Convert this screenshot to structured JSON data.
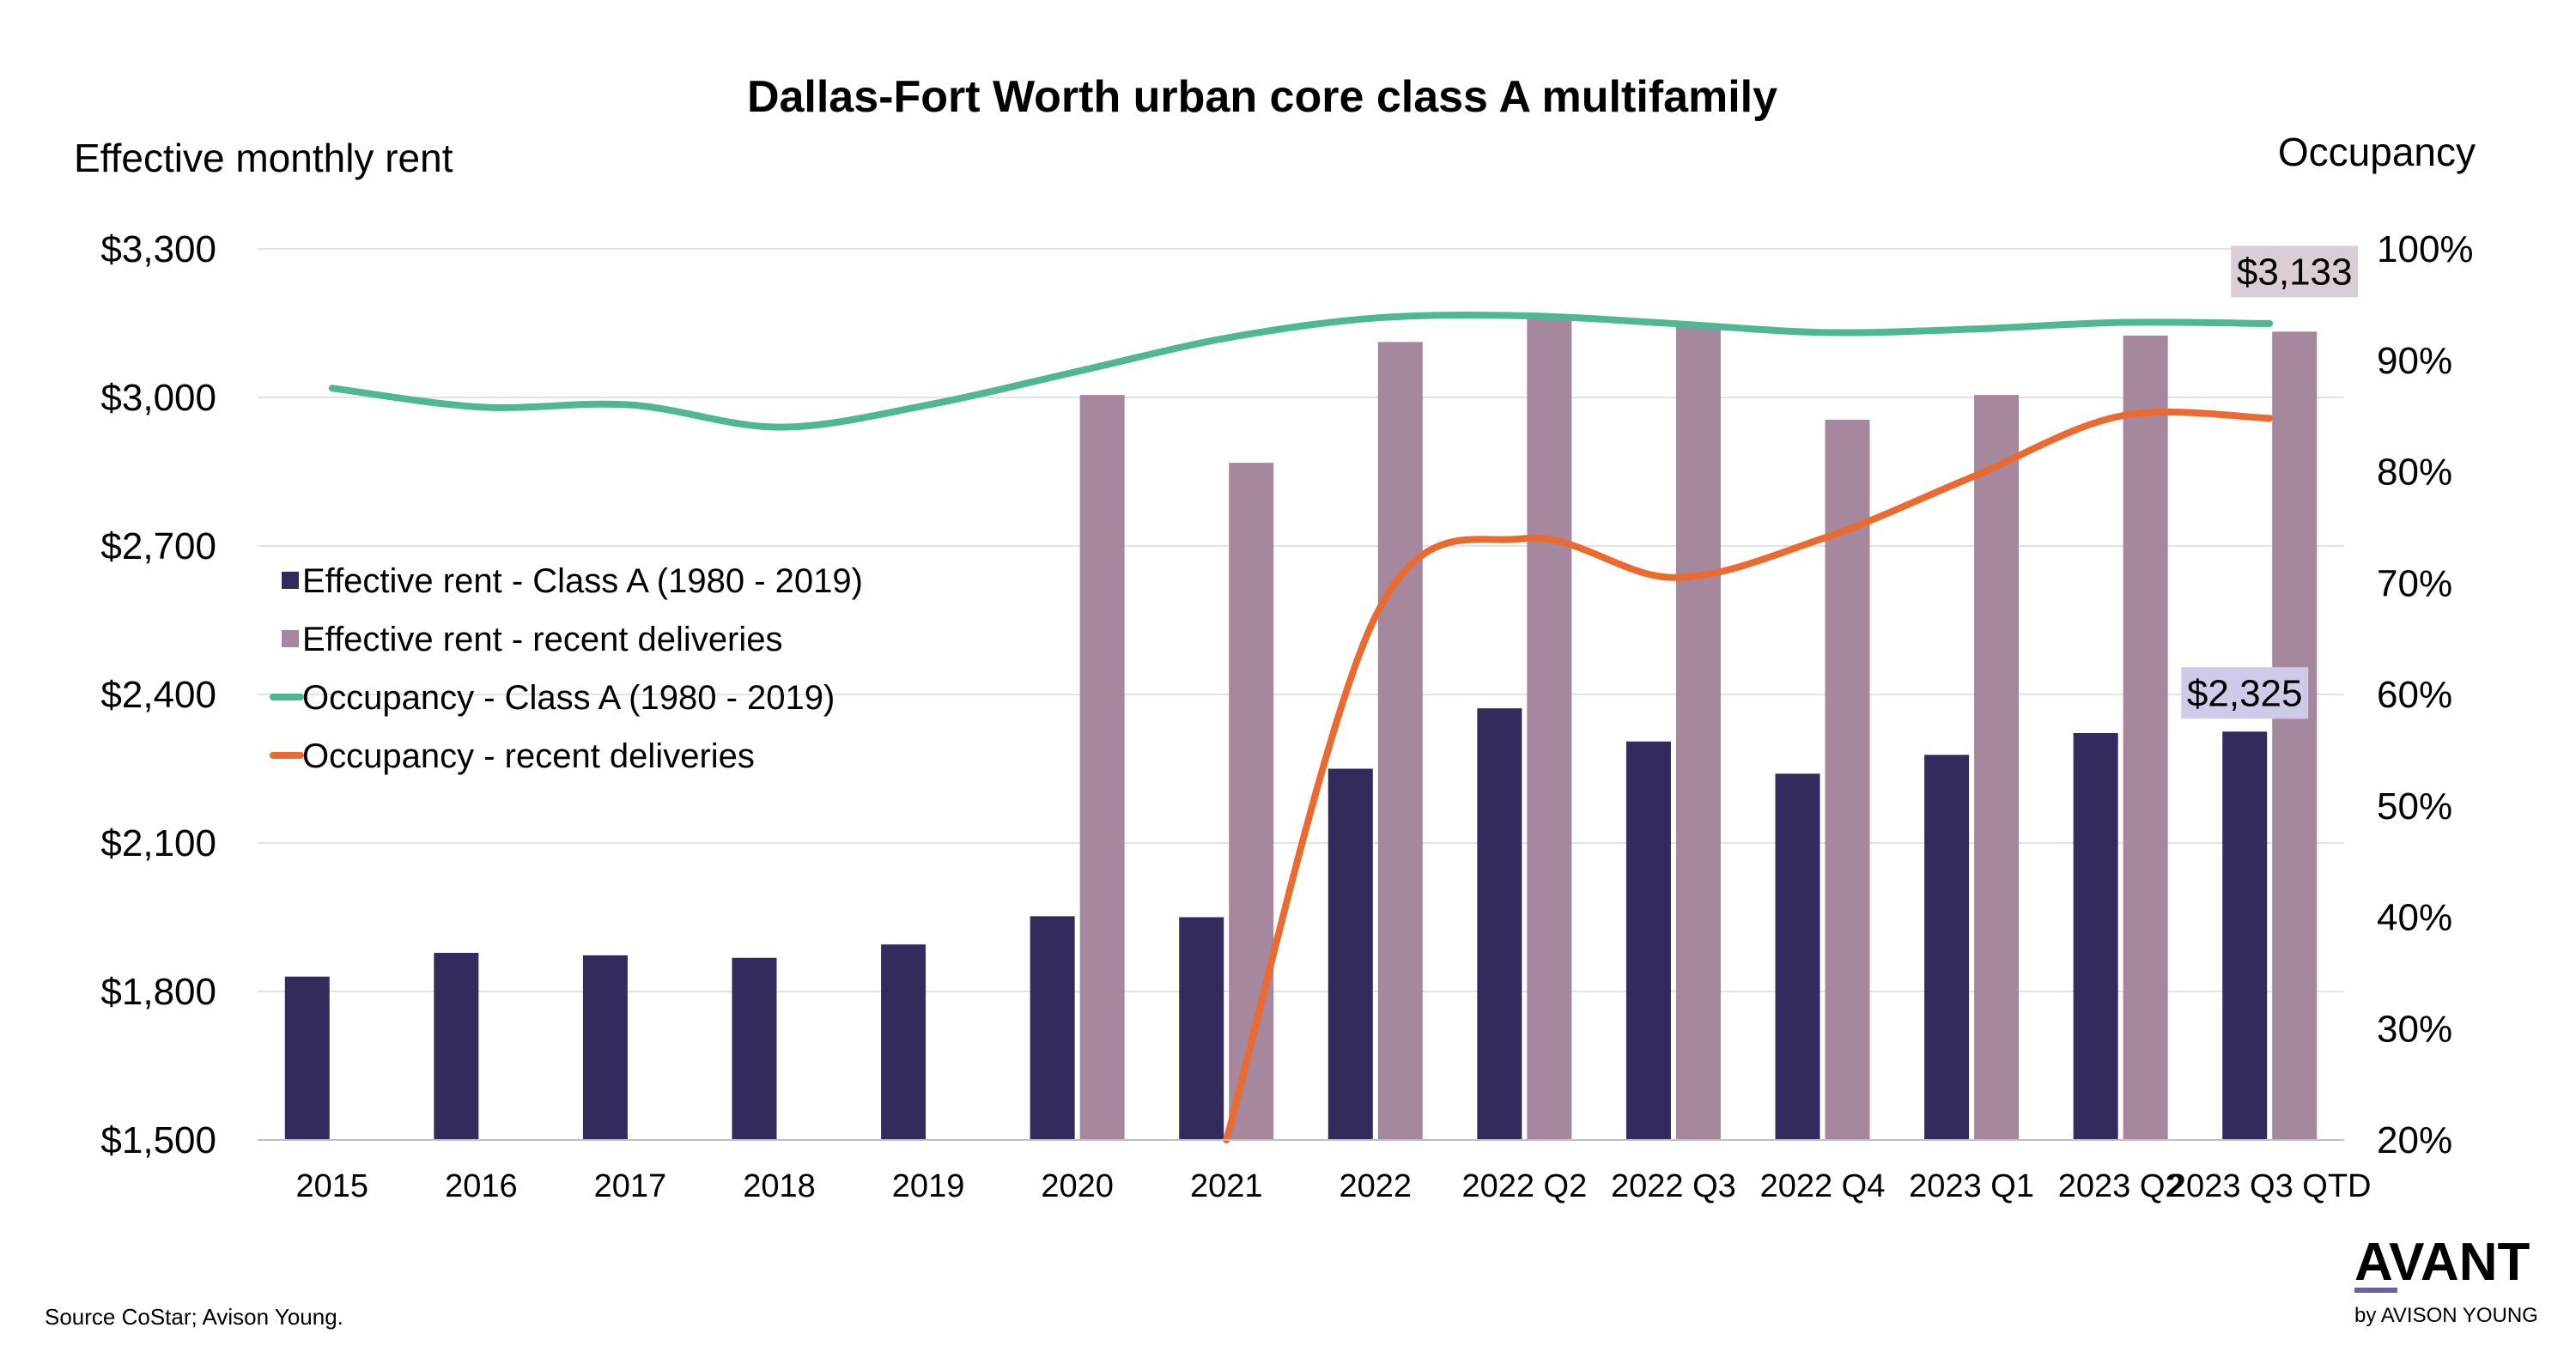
{
  "chart_data": {
    "type": "bar",
    "title": "Dallas-Fort Worth urban core class A multifamily",
    "ylabel": "Effective monthly rent",
    "y2label": "Occupancy",
    "ylim": [
      1500,
      3300
    ],
    "y2lim": [
      20,
      100
    ],
    "yticks": [
      "$1,500",
      "$1,800",
      "$2,100",
      "$2,400",
      "$2,700",
      "$3,000",
      "$3,300"
    ],
    "y2ticks": [
      "20%",
      "30%",
      "40%",
      "50%",
      "60%",
      "70%",
      "80%",
      "90%",
      "100%"
    ],
    "categories": [
      "2015",
      "2016",
      "2017",
      "2018",
      "2019",
      "2020",
      "2021",
      "2022",
      "2022 Q2",
      "2022 Q3",
      "2022 Q4",
      "2023 Q1",
      "2023 Q2",
      "2023 Q3 QTD"
    ],
    "series": [
      {
        "name": "Effective rent - Class A (1980 - 2019)",
        "type": "bar",
        "axis": "left",
        "color": "#332b5e",
        "values": [
          1830,
          1878,
          1873,
          1868,
          1895,
          1952,
          1950,
          2250,
          2372,
          2305,
          2240,
          2278,
          2322,
          2325
        ]
      },
      {
        "name": "Effective rent - recent deliveries",
        "type": "bar",
        "axis": "left",
        "color": "#a5889d",
        "values": [
          null,
          null,
          null,
          null,
          null,
          3005,
          2868,
          3112,
          3165,
          3150,
          2955,
          3005,
          3125,
          3133
        ]
      },
      {
        "name": "Occupancy - Class A (1980 - 2019)",
        "type": "line",
        "axis": "right",
        "color": "#4db891",
        "values": [
          87.5,
          85.8,
          86.0,
          84.0,
          86.0,
          89.0,
          92.0,
          93.8,
          94.0,
          93.3,
          92.5,
          92.8,
          93.4,
          93.3
        ]
      },
      {
        "name": "Occupancy - recent deliveries",
        "type": "line",
        "axis": "right",
        "color": "#eb6a2f",
        "values": [
          null,
          null,
          null,
          null,
          null,
          null,
          20.0,
          67.0,
          74.0,
          70.5,
          74.0,
          79.5,
          85.0,
          84.8
        ]
      }
    ],
    "callouts": [
      {
        "text": "$3,133",
        "color": "#d9ced5"
      },
      {
        "text": "$2,325",
        "color": "#cdcbe8"
      }
    ],
    "legend_position": "left-center",
    "grid": true
  },
  "source": "Source CoStar; Avison Young.",
  "logo": {
    "main": "AVANT",
    "sub": "by AVISON YOUNG",
    "accent": "#6b5fa6"
  }
}
